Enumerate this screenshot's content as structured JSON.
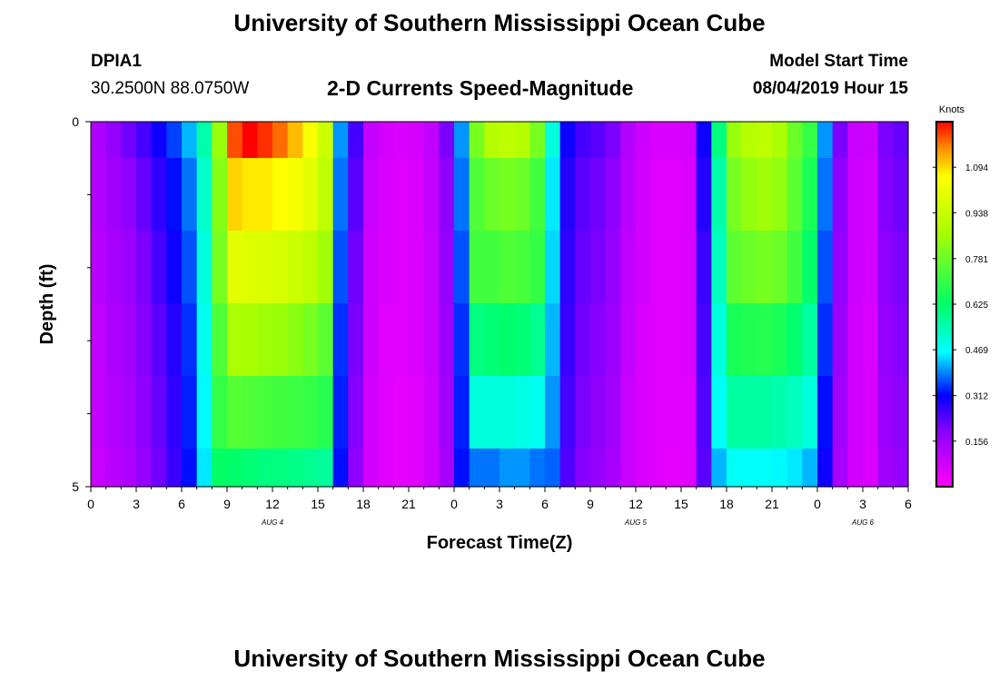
{
  "page": {
    "title_top": "University of Southern Mississippi Ocean Cube",
    "title_bottom": "University of Southern Mississippi Ocean Cube",
    "station_id": "DPIA1",
    "station_coords": "30.2500N 88.0750W",
    "plot_title": "2-D Currents Speed-Magnitude",
    "model_start_label": "Model Start Time",
    "model_start_value": "08/04/2019 Hour 15"
  },
  "chart_data": {
    "type": "heatmap",
    "title": "2-D Currents Speed-Magnitude",
    "xlabel": "Forecast Time(Z)",
    "ylabel": "Depth (ft)",
    "x_ticks": [
      "0",
      "3",
      "6",
      "9",
      "12",
      "15",
      "18",
      "21",
      "0",
      "3",
      "6",
      "9",
      "12",
      "15",
      "18",
      "21",
      "0",
      "3",
      "6"
    ],
    "date_labels": [
      {
        "text": "AUG 4",
        "hour": 12
      },
      {
        "text": "AUG 5",
        "hour": 36
      },
      {
        "text": "AUG 6",
        "hour": 51
      }
    ],
    "y_ticks": [
      "0",
      "5"
    ],
    "ylim": [
      0,
      5
    ],
    "x_hours": 54,
    "depth_rows": 5,
    "colorbar": {
      "unit_label": "Knots",
      "min": 0.0,
      "max": 1.25,
      "tick_values": [
        0.156,
        0.312,
        0.469,
        0.625,
        0.781,
        0.938,
        1.094
      ],
      "tick_labels": [
        "0.156",
        "0.312",
        "0.469",
        "0.625",
        "0.781",
        "0.938",
        "1.094"
      ]
    },
    "speed_knots_by_depth_row": [
      [
        0.13,
        0.17,
        0.21,
        0.25,
        0.3,
        0.35,
        0.42,
        0.55,
        0.85,
        1.2,
        1.25,
        1.22,
        1.18,
        1.12,
        1.05,
        0.95,
        0.4,
        0.25,
        0.1,
        0.07,
        0.06,
        0.07,
        0.1,
        0.2,
        0.4,
        0.8,
        0.9,
        0.92,
        0.9,
        0.8,
        0.5,
        0.3,
        0.25,
        0.23,
        0.2,
        0.12,
        0.08,
        0.06,
        0.06,
        0.07,
        0.3,
        0.6,
        0.85,
        0.9,
        0.92,
        0.88,
        0.78,
        0.7,
        0.4,
        0.2,
        0.09,
        0.08,
        0.2,
        0.22
      ],
      [
        0.12,
        0.15,
        0.18,
        0.22,
        0.27,
        0.32,
        0.38,
        0.52,
        0.82,
        1.1,
        1.08,
        1.08,
        1.06,
        1.04,
        1.0,
        0.92,
        0.38,
        0.23,
        0.09,
        0.06,
        0.05,
        0.06,
        0.1,
        0.18,
        0.38,
        0.74,
        0.78,
        0.8,
        0.78,
        0.72,
        0.45,
        0.28,
        0.23,
        0.21,
        0.18,
        0.11,
        0.07,
        0.05,
        0.05,
        0.06,
        0.28,
        0.55,
        0.8,
        0.84,
        0.86,
        0.84,
        0.76,
        0.66,
        0.38,
        0.18,
        0.08,
        0.07,
        0.19,
        0.21
      ],
      [
        0.11,
        0.14,
        0.16,
        0.2,
        0.25,
        0.3,
        0.36,
        0.5,
        0.8,
        1.0,
        0.99,
        0.98,
        0.97,
        0.95,
        0.92,
        0.86,
        0.36,
        0.21,
        0.08,
        0.06,
        0.05,
        0.06,
        0.09,
        0.17,
        0.36,
        0.72,
        0.72,
        0.74,
        0.73,
        0.7,
        0.44,
        0.27,
        0.22,
        0.2,
        0.17,
        0.1,
        0.07,
        0.05,
        0.05,
        0.06,
        0.26,
        0.53,
        0.76,
        0.78,
        0.8,
        0.78,
        0.72,
        0.62,
        0.36,
        0.17,
        0.08,
        0.07,
        0.18,
        0.2
      ],
      [
        0.1,
        0.13,
        0.15,
        0.19,
        0.23,
        0.28,
        0.34,
        0.48,
        0.74,
        0.88,
        0.87,
        0.86,
        0.85,
        0.83,
        0.8,
        0.76,
        0.34,
        0.2,
        0.08,
        0.05,
        0.05,
        0.06,
        0.09,
        0.16,
        0.34,
        0.6,
        0.61,
        0.62,
        0.61,
        0.58,
        0.42,
        0.26,
        0.21,
        0.19,
        0.16,
        0.1,
        0.06,
        0.05,
        0.05,
        0.06,
        0.25,
        0.5,
        0.66,
        0.67,
        0.68,
        0.66,
        0.62,
        0.56,
        0.34,
        0.16,
        0.07,
        0.06,
        0.17,
        0.19
      ],
      [
        0.1,
        0.12,
        0.14,
        0.18,
        0.22,
        0.27,
        0.33,
        0.46,
        0.7,
        0.75,
        0.74,
        0.73,
        0.72,
        0.71,
        0.7,
        0.68,
        0.33,
        0.19,
        0.07,
        0.05,
        0.04,
        0.05,
        0.08,
        0.15,
        0.33,
        0.5,
        0.5,
        0.5,
        0.49,
        0.48,
        0.4,
        0.25,
        0.2,
        0.18,
        0.15,
        0.09,
        0.06,
        0.05,
        0.05,
        0.05,
        0.24,
        0.47,
        0.56,
        0.56,
        0.56,
        0.55,
        0.53,
        0.5,
        0.32,
        0.15,
        0.07,
        0.06,
        0.16,
        0.18
      ],
      [
        0.09,
        0.11,
        0.13,
        0.17,
        0.21,
        0.26,
        0.32,
        0.45,
        0.63,
        0.62,
        0.61,
        0.6,
        0.6,
        0.59,
        0.58,
        0.57,
        0.32,
        0.18,
        0.07,
        0.05,
        0.04,
        0.05,
        0.08,
        0.14,
        0.32,
        0.38,
        0.38,
        0.4,
        0.4,
        0.38,
        0.37,
        0.24,
        0.19,
        0.17,
        0.14,
        0.09,
        0.06,
        0.05,
        0.04,
        0.05,
        0.23,
        0.42,
        0.47,
        0.47,
        0.47,
        0.46,
        0.45,
        0.42,
        0.3,
        0.14,
        0.07,
        0.06,
        0.15,
        0.17
      ]
    ]
  }
}
